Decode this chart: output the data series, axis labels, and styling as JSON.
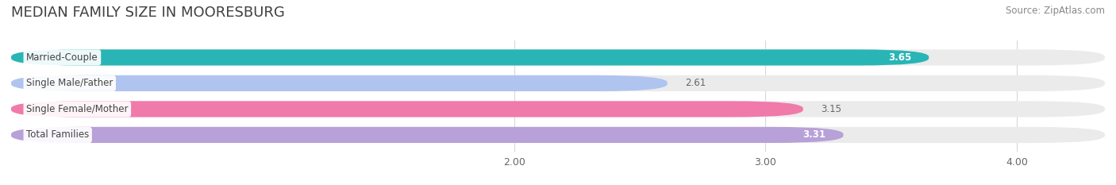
{
  "title": "MEDIAN FAMILY SIZE IN MOORESBURG",
  "source": "Source: ZipAtlas.com",
  "categories": [
    "Married-Couple",
    "Single Male/Father",
    "Single Female/Mother",
    "Total Families"
  ],
  "values": [
    3.65,
    2.61,
    3.15,
    3.31
  ],
  "bar_colors": [
    "#29b5b5",
    "#b0c4f0",
    "#f07aaa",
    "#b8a0d8"
  ],
  "value_inside": [
    true,
    false,
    false,
    true
  ],
  "xlim": [
    0.0,
    4.35
  ],
  "xstart": 0.0,
  "xticks": [
    2.0,
    3.0,
    4.0
  ],
  "xtick_labels": [
    "2.00",
    "3.00",
    "4.00"
  ],
  "bar_height": 0.62,
  "bar_gap": 0.38,
  "figsize": [
    14.06,
    2.33
  ],
  "dpi": 100,
  "title_fontsize": 13,
  "label_fontsize": 8.5,
  "value_fontsize": 8.5,
  "tick_fontsize": 9,
  "source_fontsize": 8.5,
  "background_color": "#ffffff",
  "bar_bg_color": "#ebebeb",
  "title_color": "#404040",
  "source_color": "#888888",
  "tick_color": "#666666",
  "grid_color": "#d8d8d8",
  "label_text_color": "#444444",
  "value_inside_color": "#ffffff",
  "value_outside_color": "#666666"
}
